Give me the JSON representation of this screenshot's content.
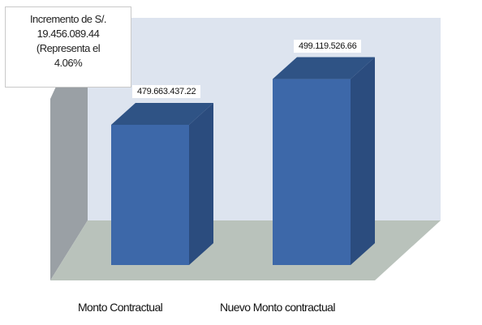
{
  "callout": {
    "line1": "Incremento de S/.",
    "line2": "19.456.089.44",
    "line3": "(Representa el",
    "line4": "4.06%"
  },
  "chart_data": {
    "type": "bar",
    "categories": [
      "Monto Contractual",
      "Nuevo Monto contractual"
    ],
    "values": [
      479663437.22,
      499119526.66
    ],
    "value_labels": [
      "479.663.437.22",
      "499.119.526.66"
    ],
    "title": "",
    "xlabel": "",
    "ylabel": "",
    "ylim": [
      420000000,
      520000000
    ],
    "grid": false,
    "legend": "none"
  },
  "colors": {
    "bar_front": "#3d68a9",
    "bar_side": "#2b4c7e",
    "bar_top": "#2f5385",
    "back_wall": "#dde4ef",
    "left_wall": "#9aa0a5",
    "floor": "#b9c2bb"
  }
}
